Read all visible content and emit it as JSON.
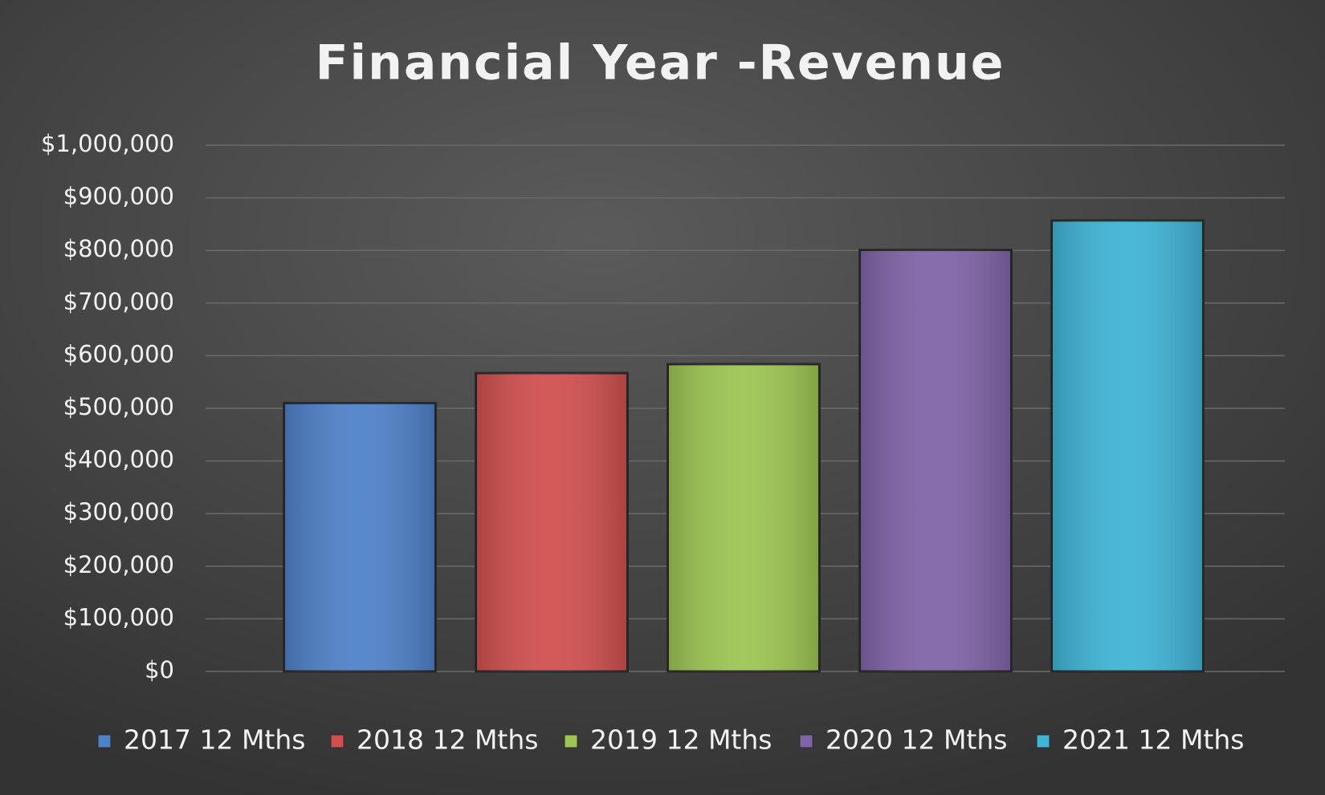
{
  "chart_data": {
    "type": "bar",
    "title": "Financial Year -Revenue",
    "series": [
      {
        "name": "2017 12 Mths",
        "color": "#4f81c9",
        "values": [
          510000
        ]
      },
      {
        "name": "2018 12 Mths",
        "color": "#d0504f",
        "values": [
          567000
        ]
      },
      {
        "name": "2019 12 Mths",
        "color": "#9dc552",
        "values": [
          584000
        ]
      },
      {
        "name": "2020 12 Mths",
        "color": "#8064a8",
        "values": [
          801000
        ]
      },
      {
        "name": "2021 12 Mths",
        "color": "#3fb4d6",
        "values": [
          857000
        ]
      }
    ],
    "ylim": [
      0,
      1000000
    ],
    "yticks": [
      {
        "value": 0,
        "label": "$0"
      },
      {
        "value": 100000,
        "label": "$100,000"
      },
      {
        "value": 200000,
        "label": "$200,000"
      },
      {
        "value": 300000,
        "label": "$300,000"
      },
      {
        "value": 400000,
        "label": "$400,000"
      },
      {
        "value": 500000,
        "label": "$500,000"
      },
      {
        "value": 600000,
        "label": "$600,000"
      },
      {
        "value": 700000,
        "label": "$700,000"
      },
      {
        "value": 800000,
        "label": "$800,000"
      },
      {
        "value": 900000,
        "label": "$900,000"
      },
      {
        "value": 1000000,
        "label": "$1,000,000"
      }
    ],
    "grid": true,
    "legend": "bottom"
  }
}
